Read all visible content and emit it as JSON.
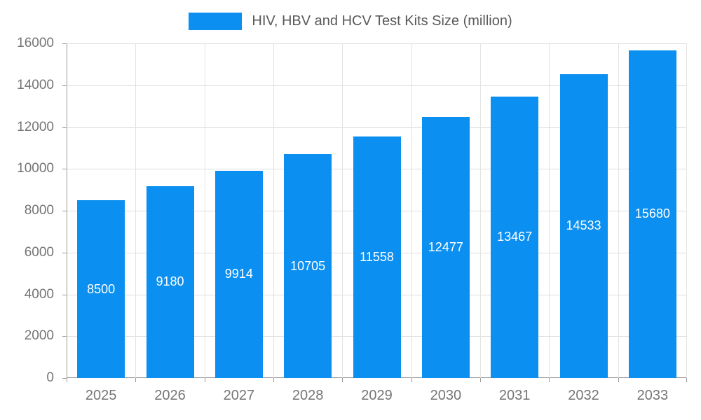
{
  "legend": {
    "label": "HIV, HBV and HCV Test Kits Size (million)"
  },
  "colors": {
    "bar": "#0b8ff0",
    "bar_value_text": "#ffffff",
    "axis_text": "#757575",
    "legend_text": "#595959",
    "grid_horizontal": "#dddddd",
    "grid_vertical": "#e3e3e3",
    "axis_line": "#999999",
    "background": "#ffffff"
  },
  "chart_data": {
    "type": "bar",
    "title": "HIV, HBV and HCV Test Kits Size (million)",
    "categories": [
      "2025",
      "2026",
      "2027",
      "2028",
      "2029",
      "2030",
      "2031",
      "2032",
      "2033"
    ],
    "values": [
      8500,
      9180,
      9914,
      10705,
      11558,
      12477,
      13467,
      14533,
      15680
    ],
    "series": [
      {
        "name": "HIV, HBV and HCV Test Kits Size (million)",
        "values": [
          8500,
          9180,
          9914,
          10705,
          11558,
          12477,
          13467,
          14533,
          15680
        ]
      }
    ],
    "xlabel": "",
    "ylabel": "",
    "ylim": [
      0,
      16000
    ],
    "ytick_step": 2000,
    "yticks": [
      0,
      2000,
      4000,
      6000,
      8000,
      10000,
      12000,
      14000,
      16000
    ],
    "grid": true,
    "legend_position": "top",
    "bar_labels": "inside-center",
    "bar_label_color": "#ffffff"
  }
}
